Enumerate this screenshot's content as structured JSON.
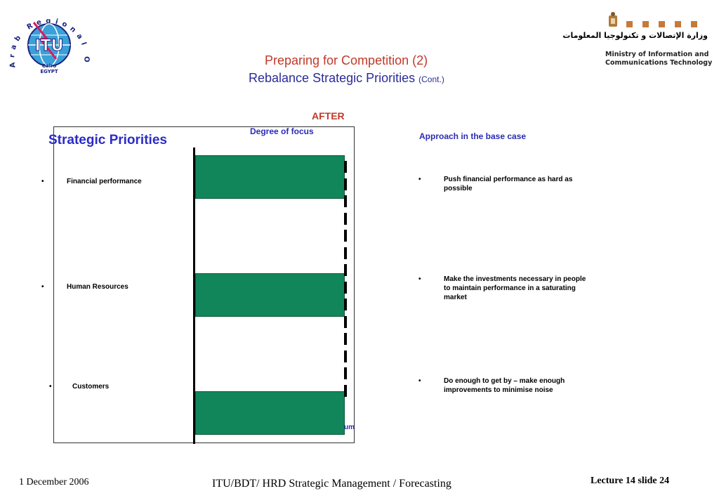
{
  "logo_itu": {
    "arc_text": "Arab Regional Office",
    "center": "ITU",
    "sub1": "Cairo",
    "sub2": "EGYPT"
  },
  "logo_ministry": {
    "arabic": "وزارة الإتصالات و تكنولوجيا المعلومات",
    "en_line1": "Ministry of Information and",
    "en_line2": "Communications Technology",
    "square_color": "#c57a3a"
  },
  "title": {
    "line1": "Preparing for Competition (2)",
    "line2": "Rebalance Strategic Priorities",
    "line2_small": "(Cont.)"
  },
  "chart_data": {
    "type": "bar",
    "title": "AFTER",
    "xlabel": "Degree of focus",
    "categories": [
      "Financial performance",
      "Human Resources",
      "Customers"
    ],
    "values": [
      1.0,
      1.0,
      1.0
    ],
    "xlim": [
      0,
      1
    ],
    "reference_line_label": "um",
    "bar_color": "#11865a",
    "grid": false
  },
  "left_heading": "Strategic Priorities",
  "right_heading": "Approach in the base case",
  "approaches": [
    "Push financial performance as hard as possible",
    "Make the investments necessary in people to maintain performance in a saturating market",
    "Do enough to get by – make enough improvements to minimise noise"
  ],
  "bullet_symbol": "•",
  "footer": {
    "date": "1 December 2006",
    "center": "ITU/BDT/ HRD   Strategic Management / Forecasting",
    "right": "Lecture 14    slide  24"
  }
}
